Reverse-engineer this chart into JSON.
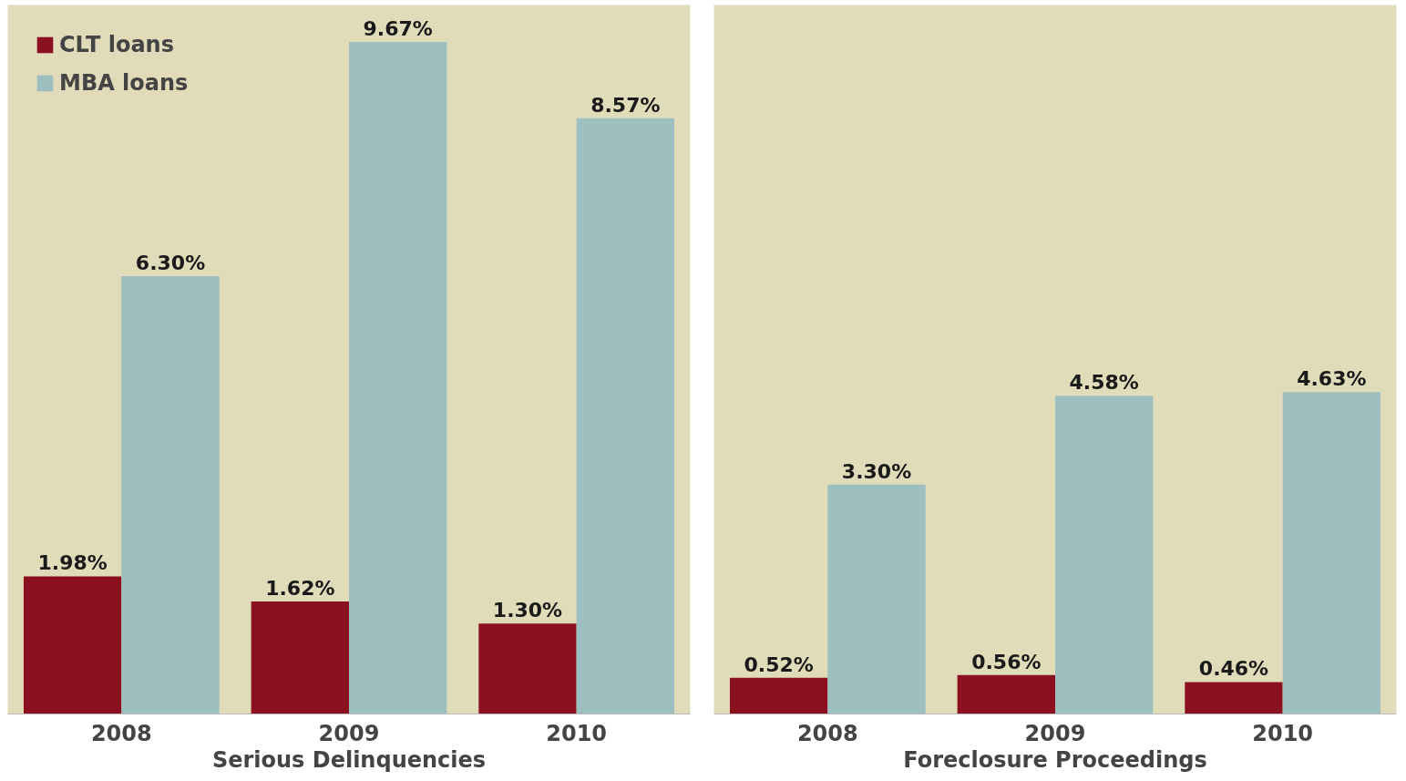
{
  "chart_data": [
    {
      "type": "bar",
      "xlabel": "Serious Delinquencies",
      "categories": [
        "2008",
        "2009",
        "2010"
      ],
      "ylim": [
        0,
        10.2
      ],
      "tick_labels": "x",
      "grid": false,
      "legend": "top left",
      "series": [
        {
          "name": "CLT loans",
          "color": "#8b1020",
          "values": [
            1.98,
            1.62,
            1.3
          ],
          "value_labels": [
            "1.98%",
            "1.62%",
            "1.30%"
          ]
        },
        {
          "name": "MBA loans",
          "color": "#9dbfc0",
          "values": [
            6.3,
            9.67,
            8.57
          ],
          "value_labels": [
            "6.30%",
            "9.67%",
            "8.57%"
          ]
        }
      ]
    },
    {
      "type": "bar",
      "xlabel": "Foreclosure Proceedings",
      "categories": [
        "2008",
        "2009",
        "2010"
      ],
      "ylim": [
        0,
        10.2
      ],
      "tick_labels": "x",
      "grid": false,
      "legend": false,
      "series": [
        {
          "color": "#8b1020",
          "values": [
            0.52,
            0.56,
            0.46
          ],
          "value_labels": [
            "0.52%",
            "0.56%",
            "0.46%"
          ]
        },
        {
          "color": "#9dbfc0",
          "values": [
            3.3,
            4.58,
            4.63
          ],
          "value_labels": [
            "3.30%",
            "4.58%",
            "4.63%"
          ]
        }
      ]
    }
  ]
}
